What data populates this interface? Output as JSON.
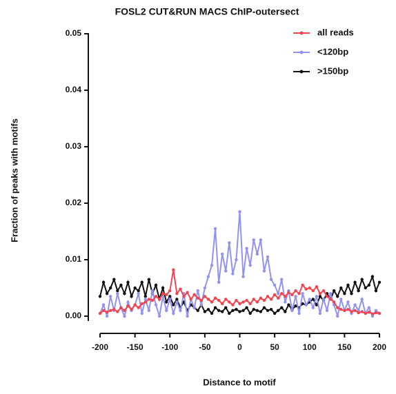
{
  "chart_data": {
    "type": "line",
    "title": "FOSL2 CUT&RUN MACS ChIP-outersect",
    "x_label": "Distance to motif",
    "y_label": "Fraction of peaks with motifs",
    "x": [
      -200,
      -195,
      -190,
      -185,
      -180,
      -175,
      -170,
      -165,
      -160,
      -155,
      -150,
      -145,
      -140,
      -135,
      -130,
      -125,
      -120,
      -115,
      -110,
      -105,
      -100,
      -95,
      -90,
      -85,
      -80,
      -75,
      -70,
      -65,
      -60,
      -55,
      -50,
      -45,
      -40,
      -35,
      -30,
      -25,
      -20,
      -15,
      -10,
      -5,
      0,
      5,
      10,
      15,
      20,
      25,
      30,
      35,
      40,
      45,
      50,
      55,
      60,
      65,
      70,
      75,
      80,
      85,
      90,
      95,
      100,
      105,
      110,
      115,
      120,
      125,
      130,
      135,
      140,
      145,
      150,
      155,
      160,
      165,
      170,
      175,
      180,
      185,
      190,
      195,
      200
    ],
    "series": [
      {
        "name": "all reads",
        "color": "#f2444e",
        "values": [
          0.0005,
          0.001,
          0.0007,
          0.001,
          0.0012,
          0.0008,
          0.0015,
          0.001,
          0.0018,
          0.0012,
          0.002,
          0.0015,
          0.0022,
          0.0025,
          0.003,
          0.0028,
          0.0035,
          0.003,
          0.004,
          0.0038,
          0.0045,
          0.0082,
          0.004,
          0.0048,
          0.0035,
          0.0042,
          0.003,
          0.0038,
          0.0032,
          0.0028,
          0.0035,
          0.003,
          0.0025,
          0.0032,
          0.0028,
          0.0022,
          0.003,
          0.0025,
          0.002,
          0.0028,
          0.0022,
          0.0025,
          0.0028,
          0.0022,
          0.003,
          0.0025,
          0.0032,
          0.0028,
          0.0035,
          0.003,
          0.0038,
          0.0032,
          0.004,
          0.0035,
          0.0042,
          0.0038,
          0.0045,
          0.004,
          0.0055,
          0.0048,
          0.005,
          0.0045,
          0.0052,
          0.004,
          0.0045,
          0.0035,
          0.003,
          0.0025,
          0.0015,
          0.0012,
          0.001,
          0.0012,
          0.0008,
          0.001,
          0.0006,
          0.0008,
          0.0005,
          0.0007,
          0.0004,
          0.0006,
          0.0005
        ]
      },
      {
        "name": "<120bp",
        "color": "#9193ee",
        "values": [
          0.0005,
          0.002,
          0,
          0.0035,
          0.001,
          0.004,
          0.0015,
          0,
          0.0025,
          0.001,
          0.002,
          0.004,
          0.0005,
          0.003,
          0.001,
          0.0045,
          0.002,
          0,
          0.0035,
          0.001,
          0.003,
          0.0005,
          0.0025,
          0.001,
          0.004,
          0,
          0.003,
          0.0015,
          0.0045,
          0.002,
          0.005,
          0.007,
          0.009,
          0.0155,
          0.006,
          0.011,
          0.008,
          0.013,
          0.0075,
          0.01,
          0.0185,
          0.007,
          0.012,
          0.009,
          0.0135,
          0.011,
          0.0135,
          0.008,
          0.0105,
          0.0065,
          0.0055,
          0.004,
          0.0065,
          0.0025,
          0.0045,
          0.001,
          0.0035,
          0.0005,
          0.004,
          0.002,
          0.003,
          0.0015,
          0.0035,
          0.0005,
          0.003,
          0.001,
          0.004,
          0.002,
          0,
          0.003,
          0.001,
          0.0025,
          0.0005,
          0.002,
          0.001,
          0.003,
          0.0005,
          0.0015,
          0,
          0.001,
          0.0005
        ]
      },
      {
        "name": ">150bp",
        "color": "#111111",
        "values": [
          0.0035,
          0.006,
          0.004,
          0.005,
          0.0065,
          0.0045,
          0.0055,
          0.004,
          0.006,
          0.0035,
          0.005,
          0.0045,
          0.006,
          0.0035,
          0.0065,
          0.004,
          0.0055,
          0.003,
          0.005,
          0.0025,
          0.0035,
          0.002,
          0.003,
          0.0015,
          0.0025,
          0.001,
          0.002,
          0.0015,
          0.001,
          0.002,
          0.0008,
          0.0012,
          0.0005,
          0.0015,
          0.001,
          0.0008,
          0.0015,
          0.0005,
          0.001,
          0.0012,
          0.0008,
          0.001,
          0.0015,
          0.0005,
          0.0012,
          0.001,
          0.0008,
          0.0015,
          0.001,
          0.0012,
          0.0005,
          0.001,
          0.0015,
          0.0008,
          0.002,
          0.0012,
          0.0018,
          0.0015,
          0.0022,
          0.002,
          0.0025,
          0.003,
          0.002,
          0.0035,
          0.0028,
          0.004,
          0.003,
          0.0045,
          0.0035,
          0.005,
          0.004,
          0.0055,
          0.004,
          0.006,
          0.0045,
          0.0065,
          0.005,
          0.0055,
          0.007,
          0.0045,
          0.006
        ]
      }
    ],
    "xlim": [
      -200,
      200
    ],
    "xticks": [
      -200,
      -150,
      -100,
      -50,
      0,
      50,
      100,
      150,
      200
    ],
    "ylim": [
      0,
      0.05
    ],
    "yticks": [
      {
        "value": 0,
        "label": "0.00"
      },
      0.01,
      0.02,
      0.03,
      0.04,
      0.05
    ],
    "legend": "top-right",
    "grid": false
  }
}
